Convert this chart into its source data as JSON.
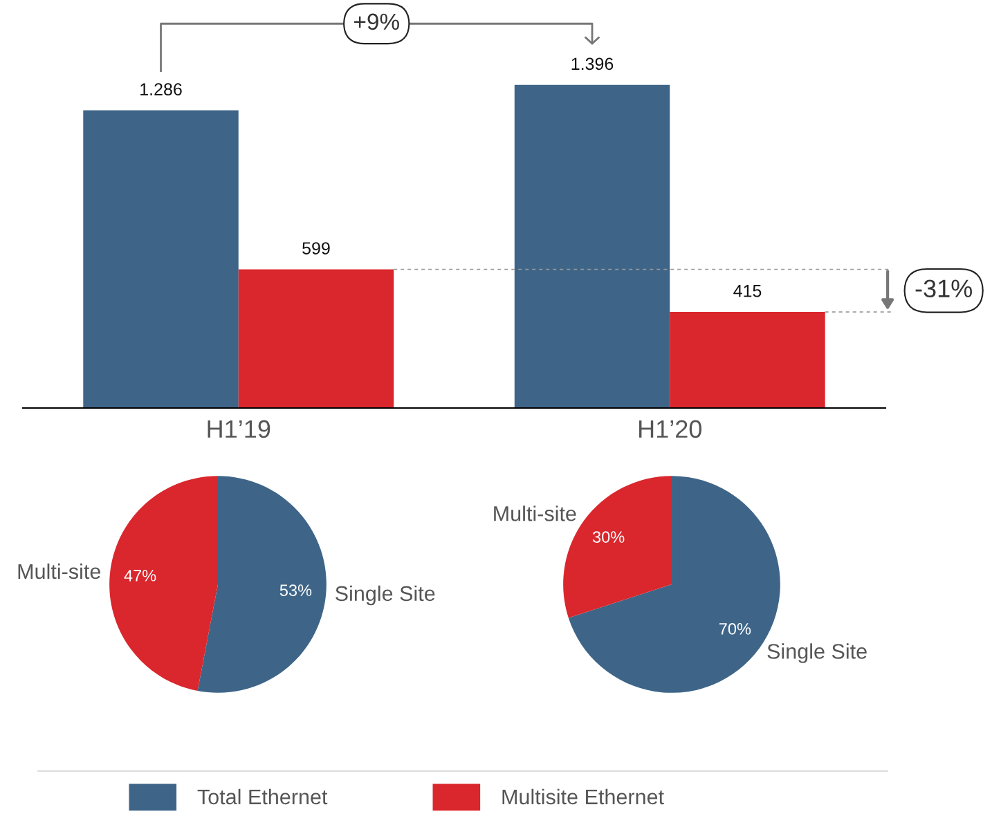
{
  "chart_data": [
    {
      "type": "bar",
      "categories": [
        "H1’19",
        "H1’20"
      ],
      "tick_labels": "x",
      "legend": "bottom",
      "annotations": [
        "+9%",
        "-31%"
      ],
      "series": [
        {
          "name": "Total Ethernet",
          "color": "#3e6588",
          "values": [
            1286,
            1396
          ],
          "value_labels": [
            "1.286",
            "1.396"
          ]
        },
        {
          "name": "Multisite Ethernet",
          "color": "#d9272d",
          "values": [
            599,
            415
          ],
          "value_labels": [
            "599",
            "415"
          ]
        }
      ]
    },
    {
      "type": "pie",
      "categories": [
        "Single Site",
        "Multi-site"
      ],
      "values": [
        53,
        47
      ],
      "colors": [
        "#3e6588",
        "#d9272d"
      ],
      "value_labels": [
        "53%",
        "47%"
      ]
    },
    {
      "type": "pie",
      "categories": [
        "Single Site",
        "Multi-site"
      ],
      "values": [
        70,
        30
      ],
      "colors": [
        "#3e6588",
        "#d9272d"
      ],
      "value_labels": [
        "70%",
        "30%"
      ]
    }
  ]
}
